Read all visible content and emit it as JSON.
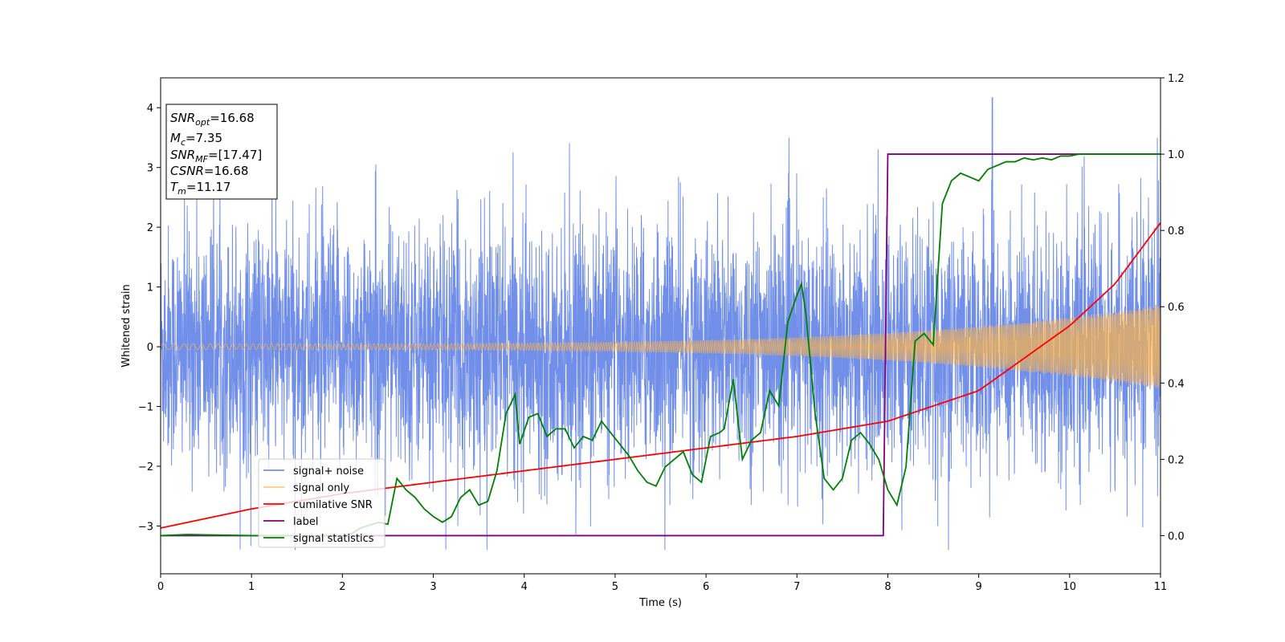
{
  "chart_data": {
    "type": "line",
    "xlabel": "Time (s)",
    "ylabel": "Whitened strain",
    "xlim": [
      0,
      11
    ],
    "ylim": [
      -3.8,
      4.5
    ],
    "y2lim": [
      -0.1,
      1.2
    ],
    "xticks": [
      0,
      1,
      2,
      3,
      4,
      5,
      6,
      7,
      8,
      9,
      10,
      11
    ],
    "yticks": [
      -3,
      -2,
      -1,
      0,
      1,
      2,
      3,
      4
    ],
    "y2ticks": [
      "0.0",
      "0.2",
      "0.4",
      "0.6",
      "0.8",
      "1.0",
      "1.2"
    ],
    "legend_position": "lower-left",
    "series": [
      {
        "name": "signal+ noise",
        "color": "#4169e1",
        "axis": "left",
        "style": "noisy band, approx ±1.7 with spikes to ±3.5, peak 4.17 near t=9.15"
      },
      {
        "name": "signal only",
        "color": "#ffb347",
        "axis": "left",
        "style": "chirp, amplitude 0.05 at t=0 rising to 0.7 at t=11"
      },
      {
        "name": "cumilative SNR",
        "color": "#ff0000",
        "axis": "right",
        "x": [
          0,
          1,
          2,
          3,
          4,
          5,
          6,
          7,
          8,
          9,
          10,
          10.5,
          11
        ],
        "y": [
          0.02,
          0.07,
          0.11,
          0.14,
          0.17,
          0.2,
          0.23,
          0.26,
          0.3,
          0.38,
          0.55,
          0.66,
          0.82
        ]
      },
      {
        "name": "label",
        "color": "#800080",
        "axis": "right",
        "x": [
          0,
          7.95,
          8.0,
          11
        ],
        "y": [
          0,
          0,
          1,
          1
        ]
      },
      {
        "name": "signal statistics",
        "color": "#008000",
        "axis": "right",
        "x": [
          0,
          0.3,
          1,
          2,
          2.1,
          2.2,
          2.4,
          2.5,
          2.6,
          2.7,
          2.8,
          2.9,
          3.0,
          3.1,
          3.2,
          3.3,
          3.4,
          3.5,
          3.6,
          3.7,
          3.8,
          3.9,
          3.95,
          4.05,
          4.15,
          4.25,
          4.35,
          4.45,
          4.55,
          4.65,
          4.75,
          4.85,
          4.95,
          5.05,
          5.15,
          5.25,
          5.35,
          5.45,
          5.55,
          5.65,
          5.75,
          5.85,
          5.95,
          6.05,
          6.15,
          6.2,
          6.3,
          6.4,
          6.5,
          6.6,
          6.7,
          6.8,
          6.9,
          7.0,
          7.05,
          7.1,
          7.2,
          7.3,
          7.4,
          7.5,
          7.6,
          7.7,
          7.8,
          7.9,
          8.0,
          8.1,
          8.2,
          8.3,
          8.4,
          8.5,
          8.6,
          8.7,
          8.8,
          8.9,
          9.0,
          9.1,
          9.2,
          9.3,
          9.4,
          9.5,
          9.6,
          9.7,
          9.8,
          9.9,
          10.0,
          10.1,
          10.3,
          10.5,
          11
        ],
        "y": [
          0.0,
          0.003,
          0.0,
          0.0,
          0.005,
          0.02,
          0.035,
          0.03,
          0.15,
          0.12,
          0.1,
          0.07,
          0.05,
          0.035,
          0.05,
          0.1,
          0.12,
          0.08,
          0.09,
          0.17,
          0.32,
          0.37,
          0.24,
          0.31,
          0.32,
          0.26,
          0.28,
          0.28,
          0.23,
          0.26,
          0.25,
          0.3,
          0.27,
          0.24,
          0.21,
          0.17,
          0.14,
          0.13,
          0.18,
          0.2,
          0.22,
          0.16,
          0.14,
          0.26,
          0.27,
          0.28,
          0.41,
          0.2,
          0.25,
          0.27,
          0.38,
          0.34,
          0.56,
          0.63,
          0.66,
          0.58,
          0.32,
          0.15,
          0.12,
          0.15,
          0.25,
          0.27,
          0.24,
          0.2,
          0.12,
          0.08,
          0.18,
          0.51,
          0.53,
          0.5,
          0.87,
          0.93,
          0.95,
          0.94,
          0.93,
          0.96,
          0.97,
          0.98,
          0.98,
          0.99,
          0.985,
          0.99,
          0.985,
          0.995,
          0.995,
          1.0,
          1.0,
          1.0,
          1.0
        ]
      }
    ],
    "annotation": {
      "lines": [
        {
          "base": "SNR",
          "sub": "opt",
          "rest": "=16.68"
        },
        {
          "base": "M",
          "sub": "c",
          "rest": "=7.35"
        },
        {
          "base": "SNR",
          "sub": "MF",
          "rest": "=[17.47]"
        },
        {
          "base": "CSNR",
          "sub": "",
          "rest": "=16.68"
        },
        {
          "base": "T",
          "sub": "m",
          "rest": "=11.17"
        }
      ]
    }
  }
}
